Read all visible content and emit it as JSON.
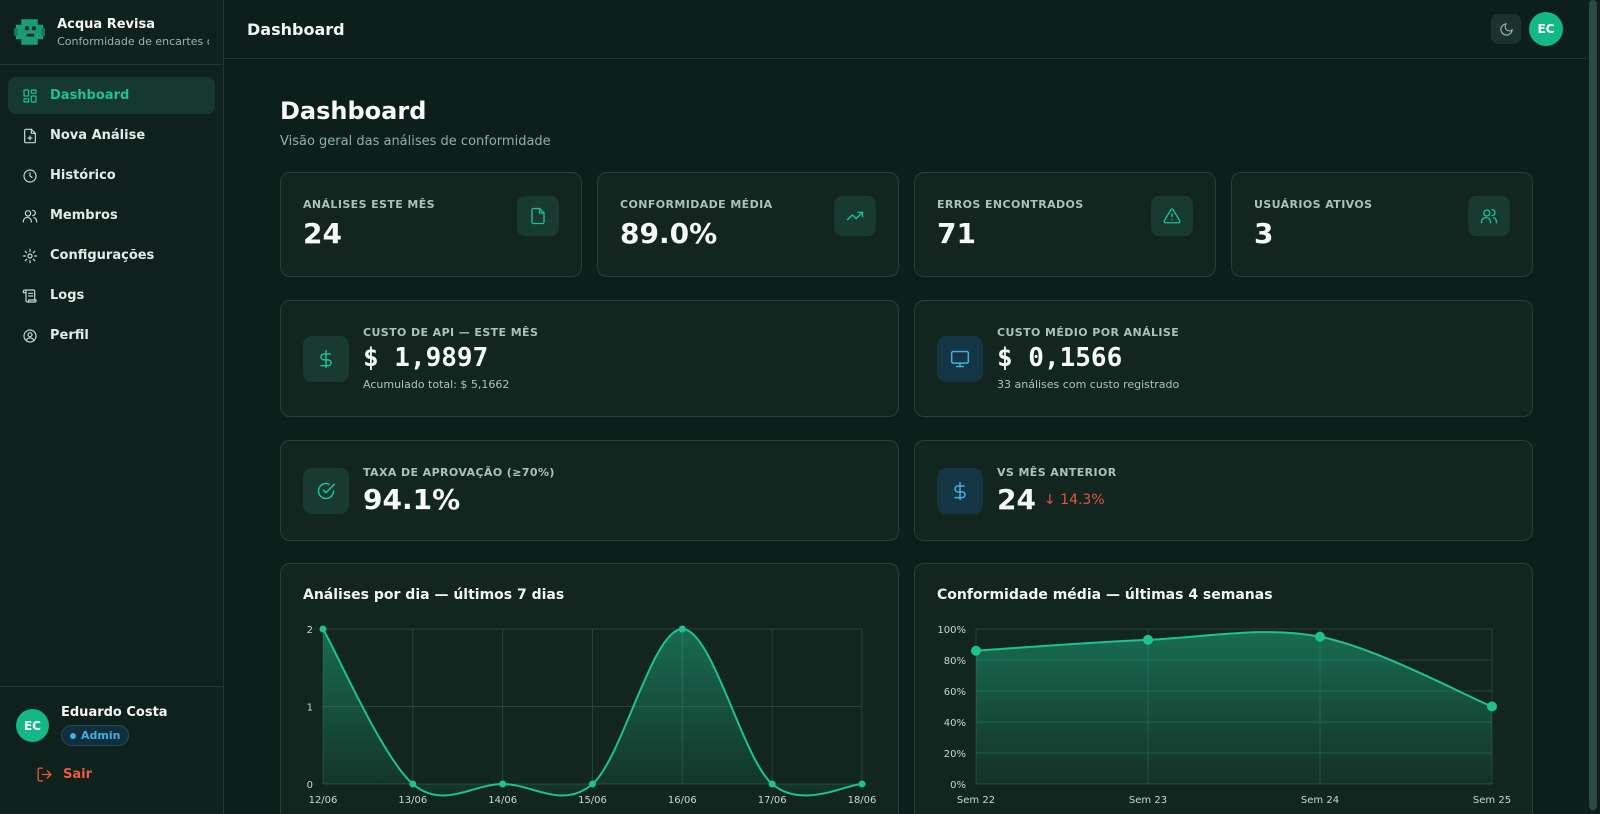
{
  "brand": {
    "name": "Acqua Revisa",
    "subtitle": "Conformidade de encartes c..."
  },
  "nav": [
    {
      "label": "Dashboard",
      "icon": "grid-icon",
      "active": true
    },
    {
      "label": "Nova Análise",
      "icon": "file-plus-icon"
    },
    {
      "label": "Histórico",
      "icon": "clock-icon"
    },
    {
      "label": "Membros",
      "icon": "users-icon"
    },
    {
      "label": "Configurações",
      "icon": "gear-icon"
    },
    {
      "label": "Logs",
      "icon": "scroll-icon"
    },
    {
      "label": "Perfil",
      "icon": "user-circle-icon"
    }
  ],
  "user": {
    "initials": "EC",
    "name": "Eduardo Costa",
    "role": "Admin",
    "logout_label": "Sair"
  },
  "topbar": {
    "title": "Dashboard",
    "avatar_initials": "EC"
  },
  "page": {
    "title": "Dashboard",
    "subtitle": "Visão geral das análises de conformidade"
  },
  "stats": [
    {
      "label": "Análises este mês",
      "value": "24",
      "icon": "document-icon"
    },
    {
      "label": "Conformidade média",
      "value": "89.0%",
      "icon": "trending-up-icon"
    },
    {
      "label": "Erros encontrados",
      "value": "71",
      "icon": "warning-icon"
    },
    {
      "label": "Usuários ativos",
      "value": "3",
      "icon": "users-icon"
    }
  ],
  "costs": [
    {
      "label": "Custo de API — este mês",
      "value": "$ 1,9897",
      "note": "Acumulado total: $ 5,1662",
      "icon": "dollar-icon"
    },
    {
      "label": "Custo médio por análise",
      "value": "$ 0,1566",
      "note": "33 análises com custo registrado",
      "icon": "monitor-icon"
    }
  ],
  "approval": {
    "label": "Taxa de aprovação (≥70%)",
    "value": "94.1%"
  },
  "vs_prev": {
    "label": "vs mês anterior",
    "value": "24",
    "delta": "14.3%"
  },
  "colors": {
    "accent": "#1fc28e",
    "danger": "#e0563b",
    "info": "#3fb0e6"
  },
  "chart_data": [
    {
      "type": "area",
      "title": "Análises por dia — últimos 7 dias",
      "x": [
        "12/06",
        "13/06",
        "14/06",
        "15/06",
        "16/06",
        "17/06",
        "18/06"
      ],
      "values": [
        2,
        0,
        0,
        0,
        2,
        0,
        0
      ],
      "yticks": [
        "0",
        "1",
        "2"
      ],
      "ylim": [
        0,
        2
      ],
      "grid": true
    },
    {
      "type": "area",
      "title": "Conformidade média — últimas 4 semanas",
      "x": [
        "Sem 22",
        "Sem 23",
        "Sem 24",
        "Sem 25"
      ],
      "values": [
        86,
        93,
        95,
        50
      ],
      "yticks": [
        "0%",
        "20%",
        "40%",
        "60%",
        "80%",
        "100%"
      ],
      "ylim": [
        0,
        100
      ],
      "grid": true
    }
  ]
}
